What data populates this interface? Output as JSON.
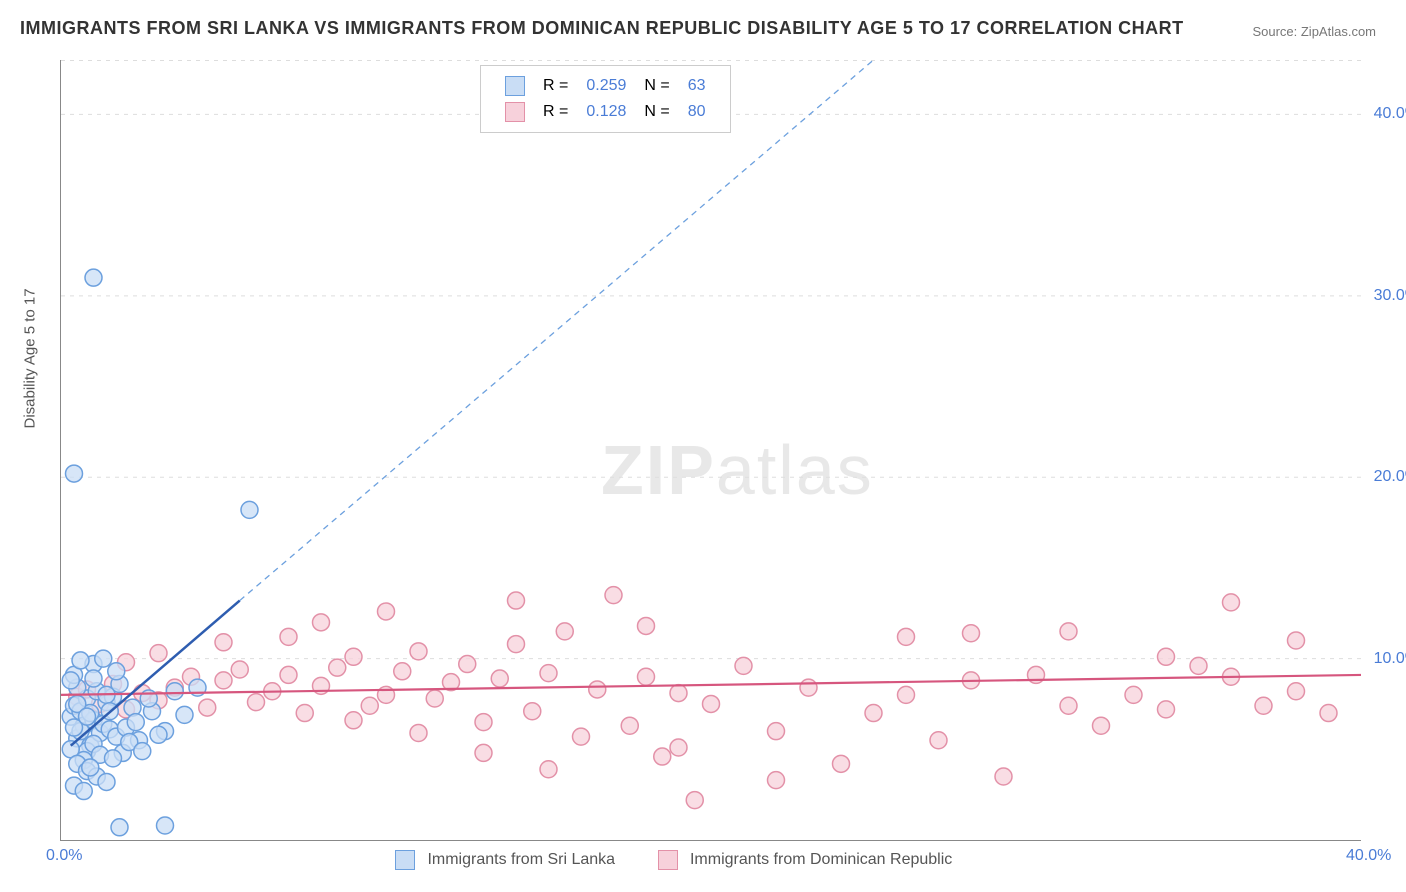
{
  "title": "IMMIGRANTS FROM SRI LANKA VS IMMIGRANTS FROM DOMINICAN REPUBLIC DISABILITY AGE 5 TO 17 CORRELATION CHART",
  "source_label": "Source: ZipAtlas.com",
  "y_axis_label": "Disability Age 5 to 17",
  "watermark": {
    "part1": "ZIP",
    "part2": "atlas"
  },
  "chart": {
    "type": "scatter",
    "xlim": [
      0,
      40
    ],
    "ylim": [
      0,
      43
    ],
    "x_ticks": [
      {
        "v": 0,
        "l": "0.0%"
      },
      {
        "v": 40,
        "l": "40.0%"
      }
    ],
    "y_ticks": [
      {
        "v": 10,
        "l": "10.0%"
      },
      {
        "v": 20,
        "l": "20.0%"
      },
      {
        "v": 30,
        "l": "30.0%"
      },
      {
        "v": 40,
        "l": "40.0%"
      }
    ],
    "grid_color": "#dddddd",
    "background_color": "#ffffff",
    "axis_color": "#888888",
    "marker_radius": 8.5,
    "marker_stroke_width": 1.5,
    "series": [
      {
        "name": "Immigrants from Sri Lanka",
        "fill": "#c9ddf5",
        "stroke": "#6ca0de",
        "trend_solid": {
          "x1": 0.3,
          "y1": 5.2,
          "x2": 5.5,
          "y2": 13.2,
          "color": "#2e5db0",
          "width": 2.5
        },
        "trend_dashed": {
          "x1": 5.5,
          "y1": 13.2,
          "x2": 25,
          "y2": 43,
          "color": "#6ca0de",
          "width": 1.3,
          "dash": "6,5"
        },
        "R": "0.259",
        "N": "63",
        "points": [
          [
            0.3,
            6.8
          ],
          [
            0.4,
            7.4
          ],
          [
            0.5,
            5.6
          ],
          [
            0.6,
            7.1
          ],
          [
            0.7,
            6.3
          ],
          [
            0.8,
            7.8
          ],
          [
            0.9,
            5.2
          ],
          [
            1.0,
            6.6
          ],
          [
            1.1,
            8.2
          ],
          [
            1.2,
            5.9
          ],
          [
            1.3,
            6.4
          ],
          [
            1.4,
            7.6
          ],
          [
            0.5,
            8.4
          ],
          [
            0.8,
            4.9
          ],
          [
            1.0,
            5.3
          ],
          [
            1.5,
            6.1
          ],
          [
            1.6,
            7.9
          ],
          [
            1.7,
            5.7
          ],
          [
            1.8,
            8.6
          ],
          [
            2.0,
            6.2
          ],
          [
            2.2,
            7.3
          ],
          [
            2.4,
            5.5
          ],
          [
            0.4,
            9.1
          ],
          [
            0.7,
            4.4
          ],
          [
            1.2,
            4.7
          ],
          [
            1.9,
            4.8
          ],
          [
            0.3,
            5.0
          ],
          [
            0.6,
            6.0
          ],
          [
            0.9,
            7.0
          ],
          [
            1.4,
            8.0
          ],
          [
            1.0,
            9.7
          ],
          [
            0.6,
            9.9
          ],
          [
            1.3,
            10.0
          ],
          [
            2.8,
            7.1
          ],
          [
            3.2,
            6.0
          ],
          [
            3.5,
            8.2
          ],
          [
            0.5,
            4.2
          ],
          [
            0.8,
            3.8
          ],
          [
            1.1,
            3.5
          ],
          [
            1.4,
            3.2
          ],
          [
            0.4,
            3.0
          ],
          [
            0.7,
            2.7
          ],
          [
            1.8,
            0.7
          ],
          [
            3.2,
            0.8
          ],
          [
            0.9,
            4.0
          ],
          [
            1.6,
            4.5
          ],
          [
            2.1,
            5.4
          ],
          [
            2.5,
            4.9
          ],
          [
            0.3,
            8.8
          ],
          [
            0.5,
            7.5
          ],
          [
            1.0,
            8.9
          ],
          [
            1.7,
            9.3
          ],
          [
            0.4,
            6.2
          ],
          [
            0.8,
            6.8
          ],
          [
            1.5,
            7.1
          ],
          [
            2.3,
            6.5
          ],
          [
            2.7,
            7.8
          ],
          [
            3.0,
            5.8
          ],
          [
            3.8,
            6.9
          ],
          [
            4.2,
            8.4
          ],
          [
            5.8,
            18.2
          ],
          [
            0.4,
            20.2
          ],
          [
            1.0,
            31.0
          ]
        ]
      },
      {
        "name": "Immigrants from Dominican Republic",
        "fill": "#f7d1db",
        "stroke": "#e391a8",
        "trend_solid": {
          "x1": 0,
          "y1": 8.0,
          "x2": 40,
          "y2": 9.1,
          "color": "#d6567e",
          "width": 2.2
        },
        "R": "0.128",
        "N": "80",
        "points": [
          [
            0.5,
            7.9
          ],
          [
            0.8,
            8.3
          ],
          [
            1.2,
            7.5
          ],
          [
            1.6,
            8.6
          ],
          [
            2.0,
            7.2
          ],
          [
            2.5,
            8.1
          ],
          [
            3.0,
            7.7
          ],
          [
            3.5,
            8.4
          ],
          [
            4.0,
            9.0
          ],
          [
            4.5,
            7.3
          ],
          [
            5.0,
            8.8
          ],
          [
            5.5,
            9.4
          ],
          [
            6.0,
            7.6
          ],
          [
            6.5,
            8.2
          ],
          [
            7.0,
            9.1
          ],
          [
            7.5,
            7.0
          ],
          [
            8.0,
            8.5
          ],
          [
            8.5,
            9.5
          ],
          [
            9.0,
            10.1
          ],
          [
            9.5,
            7.4
          ],
          [
            10.0,
            8.0
          ],
          [
            10.5,
            9.3
          ],
          [
            11.0,
            10.4
          ],
          [
            11.5,
            7.8
          ],
          [
            12.0,
            8.7
          ],
          [
            12.5,
            9.7
          ],
          [
            13.0,
            6.5
          ],
          [
            13.5,
            8.9
          ],
          [
            14.0,
            10.8
          ],
          [
            14.5,
            7.1
          ],
          [
            15.0,
            9.2
          ],
          [
            15.5,
            11.5
          ],
          [
            16.0,
            5.7
          ],
          [
            16.5,
            8.3
          ],
          [
            17.0,
            13.5
          ],
          [
            17.5,
            6.3
          ],
          [
            18.0,
            9.0
          ],
          [
            18.5,
            4.6
          ],
          [
            19.0,
            8.1
          ],
          [
            19.5,
            2.2
          ],
          [
            20.0,
            7.5
          ],
          [
            21.0,
            9.6
          ],
          [
            22.0,
            6.0
          ],
          [
            23.0,
            8.4
          ],
          [
            24.0,
            4.2
          ],
          [
            25.0,
            7.0
          ],
          [
            26.0,
            11.2
          ],
          [
            27.0,
            5.5
          ],
          [
            28.0,
            8.8
          ],
          [
            29.0,
            3.5
          ],
          [
            30.0,
            9.1
          ],
          [
            31.0,
            11.5
          ],
          [
            32.0,
            6.3
          ],
          [
            33.0,
            8.0
          ],
          [
            34.0,
            7.2
          ],
          [
            35.0,
            9.6
          ],
          [
            36.0,
            13.1
          ],
          [
            37.0,
            7.4
          ],
          [
            38.0,
            8.2
          ],
          [
            39.0,
            7.0
          ],
          [
            10.0,
            12.6
          ],
          [
            14.0,
            13.2
          ],
          [
            8.0,
            12.0
          ],
          [
            18.0,
            11.8
          ],
          [
            2.0,
            9.8
          ],
          [
            3.0,
            10.3
          ],
          [
            5.0,
            10.9
          ],
          [
            7.0,
            11.2
          ],
          [
            9.0,
            6.6
          ],
          [
            11.0,
            5.9
          ],
          [
            13.0,
            4.8
          ],
          [
            15.0,
            3.9
          ],
          [
            19.0,
            5.1
          ],
          [
            22.0,
            3.3
          ],
          [
            26.0,
            8.0
          ],
          [
            28.0,
            11.4
          ],
          [
            31.0,
            7.4
          ],
          [
            34.0,
            10.1
          ],
          [
            36.0,
            9.0
          ],
          [
            38.0,
            11.0
          ]
        ]
      }
    ]
  },
  "legend_top": {
    "col_R": "R =",
    "col_N": "N ="
  },
  "legend_bottom": [
    "Immigrants from Sri Lanka",
    "Immigrants from Dominican Republic"
  ]
}
